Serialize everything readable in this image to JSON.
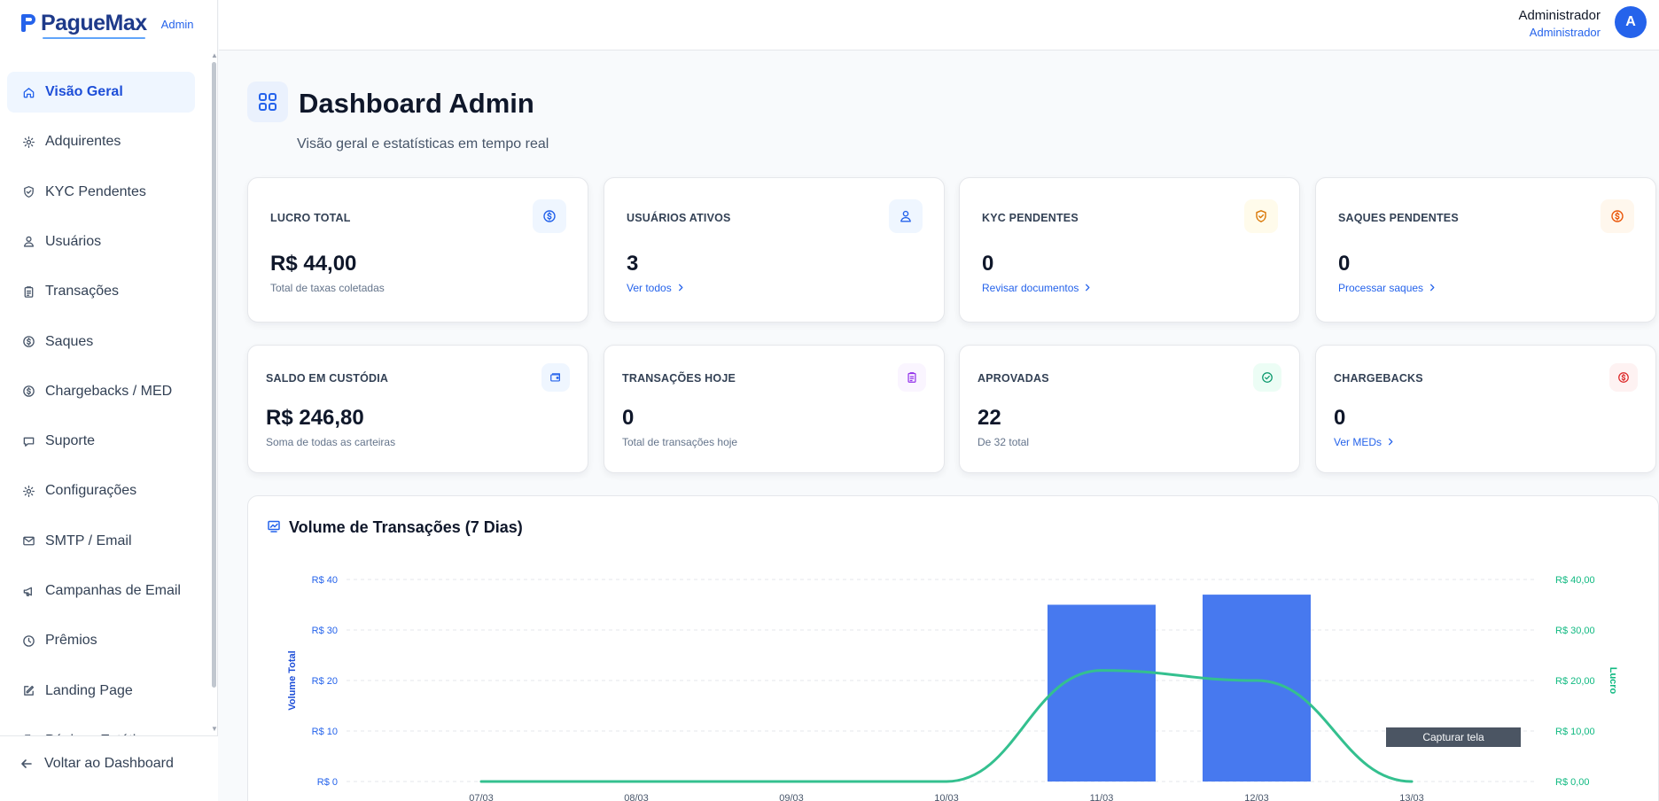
{
  "brand": {
    "name": "PagueMax",
    "tag": "Admin"
  },
  "sidebar": {
    "items": [
      {
        "label": "Visão Geral",
        "icon": "home-icon",
        "active": true
      },
      {
        "label": "Adquirentes",
        "icon": "gear-icon"
      },
      {
        "label": "KYC Pendentes",
        "icon": "shield-icon"
      },
      {
        "label": "Usuários",
        "icon": "users-icon"
      },
      {
        "label": "Transações",
        "icon": "clipboard-icon"
      },
      {
        "label": "Saques",
        "icon": "dollar-circle-icon"
      },
      {
        "label": "Chargebacks / MED",
        "icon": "dollar-circle-icon"
      },
      {
        "label": "Suporte",
        "icon": "chat-icon"
      },
      {
        "label": "Configurações",
        "icon": "gear-icon"
      },
      {
        "label": "SMTP / Email",
        "icon": "mail-icon"
      },
      {
        "label": "Campanhas de Email",
        "icon": "megaphone-icon"
      },
      {
        "label": "Prêmios",
        "icon": "clock-icon"
      },
      {
        "label": "Landing Page",
        "icon": "edit-icon"
      },
      {
        "label": "Páginas Estáticas",
        "icon": "file-icon"
      }
    ],
    "back_label": "Voltar ao Dashboard"
  },
  "header": {
    "user_name": "Administrador",
    "user_role": "Administrador",
    "avatar_initial": "A"
  },
  "page": {
    "title": "Dashboard Admin",
    "subtitle": "Visão geral e estatísticas em tempo real"
  },
  "cards": [
    {
      "label": "LUCRO TOTAL",
      "value": "R$ 44,00",
      "sub": "Total de taxas coletadas",
      "icon": "dollar-circle-icon",
      "accent": "#2563eb",
      "bg": "#eff6ff"
    },
    {
      "label": "USUÁRIOS ATIVOS",
      "value": "3",
      "link": "Ver todos",
      "icon": "users-icon",
      "accent": "#2563eb",
      "bg": "#eff6ff"
    },
    {
      "label": "KYC PENDENTES",
      "value": "0",
      "link": "Revisar documentos",
      "icon": "shield-icon",
      "accent": "#d97706",
      "bg": "#fffbeb"
    },
    {
      "label": "SAQUES PENDENTES",
      "value": "0",
      "link": "Processar saques",
      "icon": "dollar-circle-icon",
      "accent": "#ea580c",
      "bg": "#fff7ed"
    },
    {
      "label": "SALDO EM CUSTÓDIA",
      "value": "R$ 246,80",
      "sub": "Soma de todas as carteiras",
      "icon": "wallet-icon",
      "accent": "#2563eb",
      "bg": "#eff6ff"
    },
    {
      "label": "TRANSAÇÕES HOJE",
      "value": "0",
      "sub": "Total de transações hoje",
      "icon": "clipboard-icon",
      "accent": "#9333ea",
      "bg": "#faf5ff"
    },
    {
      "label": "APROVADAS",
      "value": "22",
      "sub": "De 32 total",
      "icon": "check-circle-icon",
      "accent": "#059669",
      "bg": "#ecfdf5"
    },
    {
      "label": "CHARGEBACKS",
      "value": "0",
      "link": "Ver MEDs",
      "icon": "dollar-circle-icon",
      "accent": "#dc2626",
      "bg": "#fef2f2"
    }
  ],
  "chart": {
    "title": "Volume de Transações (7 Dias)",
    "tooltip": "Capturar tela"
  },
  "chart_data": {
    "type": "bar",
    "categories": [
      "07/03",
      "08/03",
      "09/03",
      "10/03",
      "11/03",
      "12/03",
      "13/03"
    ],
    "series": [
      {
        "name": "Volume Total",
        "type": "bar",
        "axis": "left",
        "color": "#4779ef",
        "values": [
          0,
          0,
          0,
          0,
          35,
          37,
          0
        ]
      },
      {
        "name": "Lucro",
        "type": "line",
        "axis": "right",
        "color": "#34c08f",
        "values": [
          0,
          0,
          0,
          0,
          22,
          20,
          0
        ]
      }
    ],
    "ylabel": "Volume Total",
    "y2label": "Lucro",
    "ylim": [
      0,
      40
    ],
    "y2lim": [
      0,
      40
    ],
    "yticks": [
      "R$ 0",
      "R$ 10",
      "R$ 20",
      "R$ 30",
      "R$ 40"
    ],
    "y2ticks": [
      "R$ 0,00",
      "R$ 10,00",
      "R$ 20,00",
      "R$ 30,00",
      "R$ 40,00"
    ],
    "grid": true
  }
}
